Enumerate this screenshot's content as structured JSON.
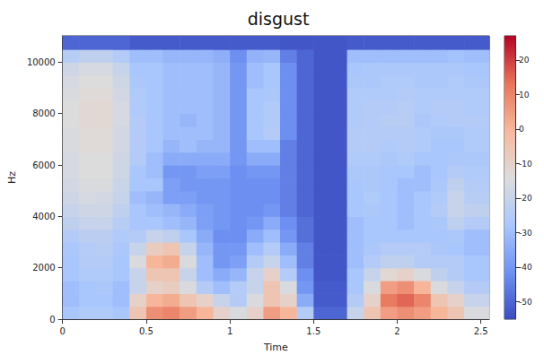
{
  "chart_data": {
    "type": "heatmap",
    "title": "disgust",
    "xlabel": "Time",
    "ylabel": "Hz",
    "xlim": [
      0,
      2.55
    ],
    "xticks": [
      0,
      0.5,
      1,
      1.5,
      2,
      2.5
    ],
    "ylim": [
      0,
      11025
    ],
    "yticks": [
      0,
      2000,
      4000,
      6000,
      8000,
      10000
    ],
    "grid": false,
    "x_bins": [
      0,
      0.1,
      0.2,
      0.3,
      0.4,
      0.5,
      0.6,
      0.7,
      0.8,
      0.9,
      1.0,
      1.1,
      1.2,
      1.3,
      1.4,
      1.5,
      1.6,
      1.7,
      1.8,
      1.9,
      2.0,
      2.1,
      2.2,
      2.3,
      2.4,
      2.55
    ],
    "y_bins": [
      0,
      500,
      1000,
      1500,
      2000,
      2500,
      3000,
      3500,
      4000,
      4500,
      5000,
      5500,
      6000,
      6500,
      7000,
      7500,
      8000,
      8500,
      9000,
      9500,
      10000,
      10500,
      11025
    ],
    "cells": [
      [
        -28,
        -26,
        -26,
        -28,
        -5,
        8,
        10,
        5,
        0,
        -10,
        -15,
        -10,
        5,
        0,
        -25,
        -50,
        -50,
        -20,
        -5,
        5,
        8,
        5,
        0,
        -5,
        -15
      ],
      [
        -30,
        -28,
        -28,
        -30,
        -10,
        0,
        2,
        -5,
        -10,
        -20,
        -25,
        -15,
        -5,
        -10,
        -35,
        -52,
        -52,
        -25,
        -10,
        12,
        15,
        10,
        -5,
        -10,
        -20
      ],
      [
        -30,
        -28,
        -27,
        -30,
        -20,
        -10,
        -8,
        -15,
        -25,
        -30,
        -25,
        -20,
        -5,
        -15,
        -40,
        -52,
        -52,
        -28,
        -15,
        5,
        8,
        0,
        -15,
        -20,
        -25
      ],
      [
        -28,
        -26,
        -26,
        -28,
        -20,
        -5,
        -5,
        -20,
        -30,
        -35,
        -32,
        -20,
        -10,
        -25,
        -42,
        -53,
        -53,
        -28,
        -20,
        -12,
        -10,
        -15,
        -22,
        -25,
        -28
      ],
      [
        -28,
        -25,
        -25,
        -28,
        -15,
        0,
        2,
        -15,
        -30,
        -40,
        -38,
        -25,
        -20,
        -30,
        -45,
        -53,
        -53,
        -30,
        -25,
        -22,
        -22,
        -25,
        -25,
        -25,
        -28
      ],
      [
        -27,
        -25,
        -24,
        -27,
        -20,
        -8,
        -5,
        -20,
        -32,
        -40,
        -40,
        -30,
        -25,
        -35,
        -45,
        -53,
        -53,
        -30,
        -27,
        -25,
        -25,
        -25,
        -27,
        -28,
        -30
      ],
      [
        -25,
        -23,
        -23,
        -26,
        -25,
        -20,
        -22,
        -28,
        -35,
        -42,
        -42,
        -35,
        -30,
        -40,
        -48,
        -53,
        -53,
        -30,
        -28,
        -28,
        -28,
        -28,
        -28,
        -27,
        -30
      ],
      [
        -22,
        -20,
        -20,
        -24,
        -28,
        -28,
        -30,
        -32,
        -38,
        -40,
        -42,
        -40,
        -35,
        -42,
        -48,
        -53,
        -53,
        -30,
        -28,
        -28,
        -30,
        -28,
        -27,
        -22,
        -25
      ],
      [
        -20,
        -18,
        -18,
        -22,
        -28,
        -30,
        -32,
        -35,
        -38,
        -40,
        -42,
        -42,
        -40,
        -45,
        -50,
        -53,
        -53,
        -28,
        -27,
        -28,
        -30,
        -28,
        -25,
        -20,
        -22
      ],
      [
        -18,
        -16,
        -17,
        -20,
        -30,
        -32,
        -38,
        -38,
        -40,
        -40,
        -42,
        -42,
        -42,
        -45,
        -50,
        -53,
        -53,
        -28,
        -26,
        -28,
        -30,
        -28,
        -26,
        -20,
        -24
      ],
      [
        -17,
        -15,
        -15,
        -19,
        -28,
        -28,
        -38,
        -40,
        -40,
        -40,
        -42,
        -42,
        -42,
        -45,
        -50,
        -53,
        -53,
        -28,
        -27,
        -28,
        -30,
        -30,
        -27,
        -22,
        -25
      ],
      [
        -16,
        -14,
        -14,
        -18,
        -28,
        -30,
        -40,
        -40,
        -38,
        -38,
        -42,
        -40,
        -40,
        -45,
        -50,
        -53,
        -53,
        -27,
        -27,
        -28,
        -28,
        -30,
        -28,
        -25,
        -26
      ],
      [
        -16,
        -14,
        -14,
        -18,
        -25,
        -30,
        -35,
        -35,
        -35,
        -35,
        -40,
        -35,
        -35,
        -45,
        -50,
        -53,
        -53,
        -26,
        -26,
        -27,
        -26,
        -28,
        -28,
        -27,
        -27
      ],
      [
        -15,
        -13,
        -13,
        -17,
        -25,
        -28,
        -32,
        -30,
        -32,
        -32,
        -40,
        -30,
        -30,
        -45,
        -50,
        -53,
        -53,
        -25,
        -25,
        -26,
        -25,
        -26,
        -28,
        -28,
        -26
      ],
      [
        -15,
        -13,
        -13,
        -17,
        -25,
        -28,
        -30,
        -30,
        -30,
        -32,
        -40,
        -28,
        -25,
        -42,
        -50,
        -53,
        -53,
        -25,
        -25,
        -25,
        -25,
        -26,
        -27,
        -27,
        -26
      ],
      [
        -14,
        -12,
        -12,
        -16,
        -25,
        -28,
        -30,
        -32,
        -30,
        -32,
        -40,
        -28,
        -26,
        -42,
        -50,
        -53,
        -53,
        -26,
        -25,
        -24,
        -24,
        -27,
        -26,
        -25,
        -25
      ],
      [
        -14,
        -12,
        -12,
        -16,
        -26,
        -28,
        -30,
        -30,
        -30,
        -32,
        -40,
        -28,
        -26,
        -42,
        -50,
        -53,
        -53,
        -26,
        -25,
        -25,
        -24,
        -26,
        -25,
        -25,
        -26
      ],
      [
        -15,
        -13,
        -13,
        -17,
        -26,
        -28,
        -30,
        -30,
        -30,
        -32,
        -40,
        -28,
        -27,
        -42,
        -50,
        -53,
        -53,
        -26,
        -26,
        -26,
        -25,
        -26,
        -26,
        -26,
        -26
      ],
      [
        -16,
        -14,
        -14,
        -18,
        -27,
        -28,
        -30,
        -30,
        -30,
        -32,
        -40,
        -30,
        -28,
        -42,
        -50,
        -53,
        -53,
        -27,
        -27,
        -26,
        -26,
        -27,
        -27,
        -26,
        -27
      ],
      [
        -18,
        -16,
        -16,
        -20,
        -28,
        -28,
        -30,
        -30,
        -30,
        -32,
        -40,
        -30,
        -28,
        -42,
        -50,
        -53,
        -53,
        -28,
        -27,
        -27,
        -27,
        -27,
        -27,
        -27,
        -28
      ],
      [
        -24,
        -22,
        -22,
        -25,
        -30,
        -30,
        -32,
        -32,
        -32,
        -34,
        -42,
        -33,
        -32,
        -45,
        -50,
        -53,
        -53,
        -30,
        -30,
        -30,
        -30,
        -30,
        -30,
        -29,
        -30
      ],
      [
        -50,
        -50,
        -50,
        -50,
        -52,
        -52,
        -52,
        -52,
        -52,
        -52,
        -52,
        -52,
        -52,
        -53,
        -53,
        -53,
        -53,
        -52,
        -52,
        -52,
        -52,
        -52,
        -52,
        -52,
        -52
      ]
    ],
    "colorbar_lim": [
      -55,
      27
    ],
    "colorbar_ticks": [
      -50,
      -40,
      -30,
      -20,
      -10,
      0,
      10,
      20
    ]
  }
}
